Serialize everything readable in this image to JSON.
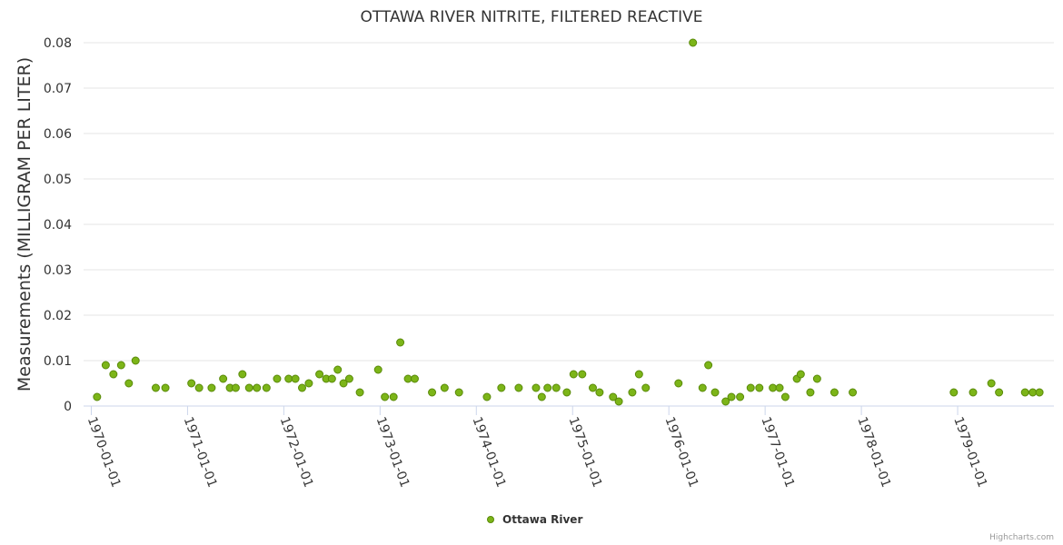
{
  "chart_data": {
    "type": "scatter",
    "title": "OTTAWA RIVER NITRITE, FILTERED REACTIVE",
    "xlabel": "",
    "ylabel": "Measurements (MILLIGRAM PER LITER)",
    "ylim": [
      0,
      0.08
    ],
    "yticks": [
      0,
      0.01,
      0.02,
      0.03,
      0.04,
      0.05,
      0.06,
      0.07,
      0.08
    ],
    "ytick_labels": [
      "0",
      "0.01",
      "0.02",
      "0.03",
      "0.04",
      "0.05",
      "0.06",
      "0.07",
      "0.08"
    ],
    "xlim": [
      1969.92,
      1980.0
    ],
    "xticks": [
      1970,
      1971,
      1972,
      1973,
      1974,
      1975,
      1976,
      1977,
      1978,
      1979
    ],
    "xtick_labels": [
      "1970-01-01",
      "1971-01-01",
      "1972-01-01",
      "1973-01-01",
      "1974-01-01",
      "1975-01-01",
      "1976-01-01",
      "1977-01-01",
      "1978-01-01",
      "1979-01-01"
    ],
    "grid": true,
    "legend_position": "bottom-center",
    "series": [
      {
        "name": "Ottawa River",
        "color": "#7cb518",
        "border_color": "#5a8a0a",
        "points": [
          {
            "x": 1970.06,
            "y": 0.002
          },
          {
            "x": 1970.15,
            "y": 0.009
          },
          {
            "x": 1970.23,
            "y": 0.007
          },
          {
            "x": 1970.31,
            "y": 0.009
          },
          {
            "x": 1970.39,
            "y": 0.005
          },
          {
            "x": 1970.46,
            "y": 0.01
          },
          {
            "x": 1970.67,
            "y": 0.004
          },
          {
            "x": 1970.77,
            "y": 0.004
          },
          {
            "x": 1971.04,
            "y": 0.005
          },
          {
            "x": 1971.12,
            "y": 0.004
          },
          {
            "x": 1971.25,
            "y": 0.004
          },
          {
            "x": 1971.37,
            "y": 0.006
          },
          {
            "x": 1971.44,
            "y": 0.004
          },
          {
            "x": 1971.5,
            "y": 0.004
          },
          {
            "x": 1971.57,
            "y": 0.007
          },
          {
            "x": 1971.64,
            "y": 0.004
          },
          {
            "x": 1971.72,
            "y": 0.004
          },
          {
            "x": 1971.82,
            "y": 0.004
          },
          {
            "x": 1971.93,
            "y": 0.006
          },
          {
            "x": 1972.05,
            "y": 0.006
          },
          {
            "x": 1972.12,
            "y": 0.006
          },
          {
            "x": 1972.19,
            "y": 0.004
          },
          {
            "x": 1972.26,
            "y": 0.005
          },
          {
            "x": 1972.37,
            "y": 0.007
          },
          {
            "x": 1972.44,
            "y": 0.006
          },
          {
            "x": 1972.5,
            "y": 0.006
          },
          {
            "x": 1972.56,
            "y": 0.008
          },
          {
            "x": 1972.62,
            "y": 0.005
          },
          {
            "x": 1972.68,
            "y": 0.006
          },
          {
            "x": 1972.79,
            "y": 0.003
          },
          {
            "x": 1972.98,
            "y": 0.008
          },
          {
            "x": 1973.05,
            "y": 0.002
          },
          {
            "x": 1973.14,
            "y": 0.002
          },
          {
            "x": 1973.21,
            "y": 0.014
          },
          {
            "x": 1973.29,
            "y": 0.006
          },
          {
            "x": 1973.36,
            "y": 0.006
          },
          {
            "x": 1973.54,
            "y": 0.003
          },
          {
            "x": 1973.67,
            "y": 0.004
          },
          {
            "x": 1973.82,
            "y": 0.003
          },
          {
            "x": 1974.11,
            "y": 0.002
          },
          {
            "x": 1974.26,
            "y": 0.004
          },
          {
            "x": 1974.44,
            "y": 0.004
          },
          {
            "x": 1974.62,
            "y": 0.004
          },
          {
            "x": 1974.68,
            "y": 0.002
          },
          {
            "x": 1974.74,
            "y": 0.004
          },
          {
            "x": 1974.83,
            "y": 0.004
          },
          {
            "x": 1974.94,
            "y": 0.003
          },
          {
            "x": 1975.01,
            "y": 0.007
          },
          {
            "x": 1975.1,
            "y": 0.007
          },
          {
            "x": 1975.21,
            "y": 0.004
          },
          {
            "x": 1975.28,
            "y": 0.003
          },
          {
            "x": 1975.42,
            "y": 0.002
          },
          {
            "x": 1975.48,
            "y": 0.001
          },
          {
            "x": 1975.62,
            "y": 0.003
          },
          {
            "x": 1975.69,
            "y": 0.007
          },
          {
            "x": 1975.76,
            "y": 0.004
          },
          {
            "x": 1976.1,
            "y": 0.005
          },
          {
            "x": 1976.25,
            "y": 0.08
          },
          {
            "x": 1976.35,
            "y": 0.004
          },
          {
            "x": 1976.41,
            "y": 0.009
          },
          {
            "x": 1976.48,
            "y": 0.003
          },
          {
            "x": 1976.59,
            "y": 0.001
          },
          {
            "x": 1976.65,
            "y": 0.002
          },
          {
            "x": 1976.74,
            "y": 0.002
          },
          {
            "x": 1976.85,
            "y": 0.004
          },
          {
            "x": 1976.94,
            "y": 0.004
          },
          {
            "x": 1977.08,
            "y": 0.004
          },
          {
            "x": 1977.15,
            "y": 0.004
          },
          {
            "x": 1977.21,
            "y": 0.002
          },
          {
            "x": 1977.33,
            "y": 0.006
          },
          {
            "x": 1977.37,
            "y": 0.007
          },
          {
            "x": 1977.47,
            "y": 0.003
          },
          {
            "x": 1977.54,
            "y": 0.006
          },
          {
            "x": 1977.72,
            "y": 0.003
          },
          {
            "x": 1977.91,
            "y": 0.003
          },
          {
            "x": 1978.96,
            "y": 0.003
          },
          {
            "x": 1979.16,
            "y": 0.003
          },
          {
            "x": 1979.35,
            "y": 0.005
          },
          {
            "x": 1979.43,
            "y": 0.003
          },
          {
            "x": 1979.7,
            "y": 0.003
          },
          {
            "x": 1979.78,
            "y": 0.003
          },
          {
            "x": 1979.85,
            "y": 0.003
          }
        ]
      }
    ]
  },
  "legend": {
    "label": "Ottawa River"
  },
  "credits": {
    "text": "Highcharts.com"
  }
}
